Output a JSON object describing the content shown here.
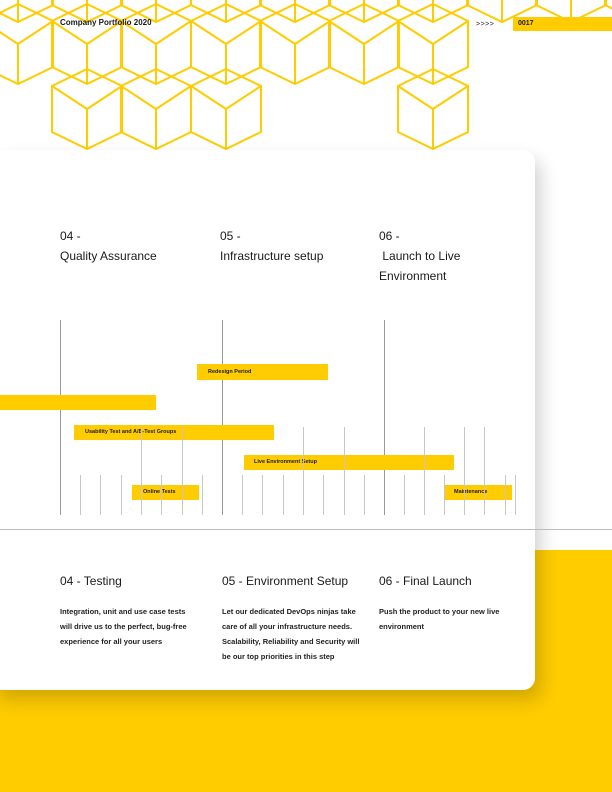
{
  "header": {
    "title": "Company Portfolio 2020",
    "arrows": ">>>>",
    "page_number": "0017"
  },
  "phases": [
    {
      "number": "04 -",
      "name": "Quality Assurance"
    },
    {
      "number": "05 -",
      "name": "Infrastructure setup"
    },
    {
      "number": "06 -",
      "name": " Launch to Live Environment"
    }
  ],
  "timeline": {
    "bars": [
      {
        "label": "Redesign Period"
      },
      {
        "label": ""
      },
      {
        "label": "Usability Test and A/B-Test Groups"
      },
      {
        "label": "Live Environment Setup"
      },
      {
        "label": "Online Tests"
      },
      {
        "label": "Maintenance"
      }
    ]
  },
  "sections": [
    {
      "title": "04 - Testing",
      "body": "Integration, unit and use case tests will drive us to the perfect, bug-free experience for all your users"
    },
    {
      "title": "05 - Environment Setup",
      "body": "Let our dedicated DevOps ninjas take care of all your infrastructure needs. Scalability, Reliability and Security will be our top priorities in this step"
    },
    {
      "title": "06 - Final Launch",
      "body": "Push the product to your new live environment"
    }
  ],
  "colors": {
    "accent": "#FFCC00",
    "text": "#1a1a1a"
  }
}
